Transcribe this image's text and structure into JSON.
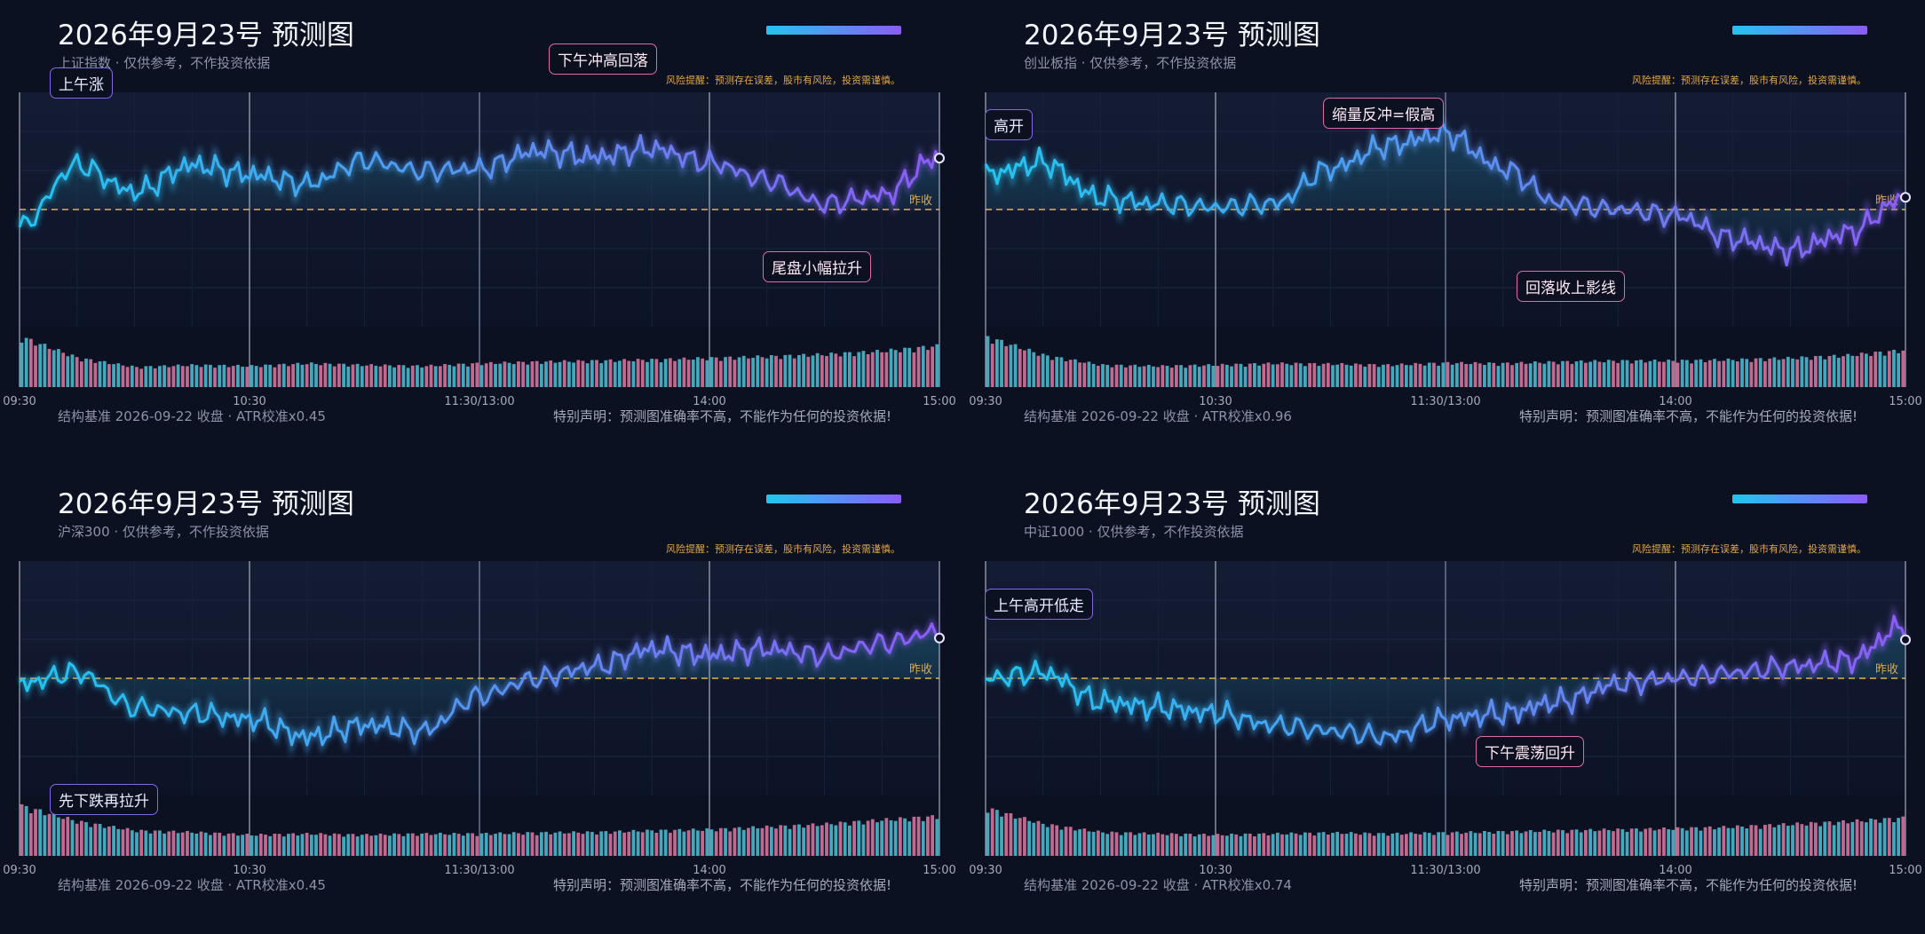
{
  "common": {
    "title": "2026年9月23号 预测图",
    "risk_notice": "风险提醒：预测存在误差，股市有风险，投资需谨慎。",
    "disclaimer": "特别声明：预测图准确率不高，不能作为任何的投资依据!",
    "baseline_label": "昨收",
    "accent_colors": [
      "#22c5f0",
      "#8b5cf6"
    ],
    "prev_close_line_color": "#e0b25a",
    "volume_up_color": "#4fc3d9",
    "volume_down_color": "#e07aa6"
  },
  "panels": [
    {
      "subtitle": "上证指数 · 仅供参考，不作投资依据",
      "footer": "结构基准 2026-09-22 收盘 · ATR校准x0.45",
      "tags": [
        {
          "text": "上午涨",
          "style": "purple"
        },
        {
          "text": "下午冲高回落",
          "style": "pink"
        },
        {
          "text": "尾盘小幅拉升",
          "style": "pink"
        }
      ]
    },
    {
      "subtitle": "创业板指 · 仅供参考，不作投资依据",
      "footer": "结构基准 2026-09-22 收盘 · ATR校准x0.96",
      "tags": [
        {
          "text": "高开",
          "style": "purple"
        },
        {
          "text": "缩量反冲=假高",
          "style": "pink"
        },
        {
          "text": "回落收上影线",
          "style": "pink"
        }
      ]
    },
    {
      "subtitle": "沪深300 · 仅供参考，不作投资依据",
      "footer": "结构基准 2026-09-22 收盘 · ATR校准x0.45",
      "tags": [
        {
          "text": "先下跌再拉升",
          "style": "purple"
        }
      ]
    },
    {
      "subtitle": "中证1000 · 仅供参考，不作投资依据",
      "footer": "结构基准 2026-09-22 收盘 · ATR校准x0.74",
      "tags": [
        {
          "text": "上午高开低走",
          "style": "purple"
        },
        {
          "text": "下午震荡回升",
          "style": "pink"
        }
      ]
    }
  ],
  "chart_data": [
    {
      "type": "line",
      "name": "上证指数",
      "x_ticks": [
        "09:30",
        "10:30",
        "11:30/13:00",
        "14:00",
        "15:00"
      ],
      "y_relative_to_prev_close": {
        "baseline": 0,
        "ylim": [
          -1.0,
          1.0
        ]
      },
      "x": [
        "09:30",
        "09:45",
        "10:00",
        "10:15",
        "10:30",
        "10:45",
        "11:00",
        "11:15",
        "11:30/13:00",
        "13:15",
        "13:30",
        "13:45",
        "14:00",
        "14:15",
        "14:30",
        "14:45",
        "15:00"
      ],
      "y": [
        -0.15,
        0.38,
        0.15,
        0.38,
        0.3,
        0.22,
        0.42,
        0.33,
        0.35,
        0.5,
        0.45,
        0.52,
        0.4,
        0.25,
        0.05,
        0.12,
        0.45
      ],
      "volume": {
        "relative": [
          0.95,
          0.55,
          0.38,
          0.42,
          0.4,
          0.45,
          0.42,
          0.4,
          0.45,
          0.48,
          0.5,
          0.52,
          0.55,
          0.58,
          0.62,
          0.68,
          0.78
        ]
      }
    },
    {
      "type": "line",
      "name": "创业板指",
      "x_ticks": [
        "09:30",
        "10:30",
        "11:30/13:00",
        "14:00",
        "15:00"
      ],
      "y_relative_to_prev_close": {
        "baseline": 0,
        "ylim": [
          -1.0,
          1.0
        ]
      },
      "x": [
        "09:30",
        "09:45",
        "10:00",
        "10:15",
        "10:30",
        "10:45",
        "11:00",
        "11:15",
        "11:30/13:00",
        "13:15",
        "13:30",
        "13:45",
        "14:00",
        "14:15",
        "14:30",
        "14:45",
        "15:00"
      ],
      "y": [
        0.3,
        0.4,
        0.1,
        0.05,
        0.02,
        0.05,
        0.35,
        0.55,
        0.65,
        0.35,
        0.05,
        0.0,
        -0.05,
        -0.25,
        -0.35,
        -0.2,
        0.1
      ],
      "volume": {
        "relative": [
          0.95,
          0.6,
          0.42,
          0.4,
          0.42,
          0.45,
          0.44,
          0.42,
          0.46,
          0.45,
          0.48,
          0.5,
          0.5,
          0.52,
          0.55,
          0.6,
          0.7
        ]
      }
    },
    {
      "type": "line",
      "name": "沪深300",
      "x_ticks": [
        "09:30",
        "10:30",
        "11:30/13:00",
        "14:00",
        "15:00"
      ],
      "y_relative_to_prev_close": {
        "baseline": 0,
        "ylim": [
          -1.0,
          1.0
        ]
      },
      "x": [
        "09:30",
        "09:45",
        "10:00",
        "10:15",
        "10:30",
        "10:45",
        "11:00",
        "11:15",
        "11:30/13:00",
        "13:15",
        "13:30",
        "13:45",
        "14:00",
        "14:15",
        "14:30",
        "14:45",
        "15:00"
      ],
      "y": [
        -0.05,
        0.05,
        -0.25,
        -0.3,
        -0.35,
        -0.5,
        -0.4,
        -0.45,
        -0.15,
        0.0,
        0.1,
        0.25,
        0.2,
        0.25,
        0.2,
        0.3,
        0.4
      ],
      "volume": {
        "relative": [
          0.95,
          0.65,
          0.48,
          0.45,
          0.4,
          0.42,
          0.4,
          0.42,
          0.42,
          0.44,
          0.45,
          0.48,
          0.5,
          0.55,
          0.6,
          0.68,
          0.75
        ]
      }
    },
    {
      "type": "line",
      "name": "中证1000",
      "x_ticks": [
        "09:30",
        "10:30",
        "11:30/13:00",
        "14:00",
        "15:00"
      ],
      "y_relative_to_prev_close": {
        "baseline": 0,
        "ylim": [
          -1.0,
          1.0
        ]
      },
      "x": [
        "09:30",
        "09:45",
        "10:00",
        "10:15",
        "10:30",
        "10:45",
        "11:00",
        "11:15",
        "11:30/13:00",
        "13:15",
        "13:30",
        "13:45",
        "14:00",
        "14:15",
        "14:30",
        "14:45",
        "15:00"
      ],
      "y": [
        0.0,
        0.05,
        -0.2,
        -0.25,
        -0.3,
        -0.4,
        -0.45,
        -0.5,
        -0.35,
        -0.3,
        -0.2,
        -0.05,
        0.0,
        0.05,
        0.1,
        0.15,
        0.45
      ],
      "volume": {
        "relative": [
          0.9,
          0.6,
          0.45,
          0.42,
          0.4,
          0.42,
          0.44,
          0.42,
          0.44,
          0.46,
          0.48,
          0.5,
          0.52,
          0.55,
          0.6,
          0.65,
          0.72
        ]
      }
    }
  ]
}
